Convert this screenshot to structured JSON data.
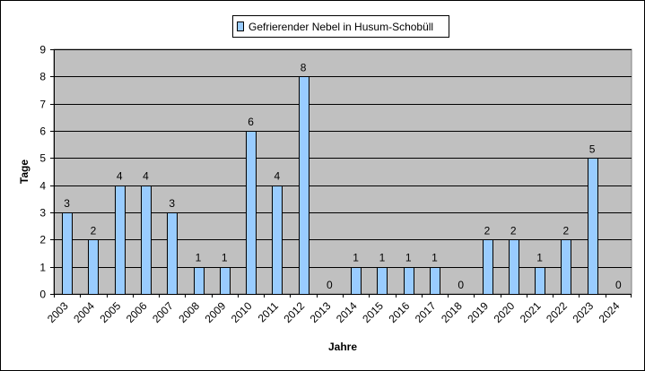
{
  "chart_data": {
    "type": "bar",
    "categories": [
      "2003",
      "2004",
      "2005",
      "2006",
      "2007",
      "2008",
      "2009",
      "2010",
      "2011",
      "2012",
      "2013",
      "2014",
      "2015",
      "2016",
      "2017",
      "2018",
      "2019",
      "2020",
      "2021",
      "2022",
      "2023",
      "2024"
    ],
    "series": [
      {
        "name": "Gefrierender Nebel in Husum-Schobüll",
        "values": [
          3,
          2,
          4,
          4,
          3,
          1,
          1,
          6,
          4,
          8,
          0,
          1,
          1,
          1,
          1,
          0,
          2,
          2,
          1,
          2,
          5,
          0
        ]
      }
    ],
    "xlabel": "Jahre",
    "ylabel": "Tage",
    "ylim": [
      0,
      9
    ],
    "yticks": [
      0,
      1,
      2,
      3,
      4,
      5,
      6,
      7,
      8,
      9
    ],
    "grid": true,
    "legend": "top-center",
    "data_labels": true
  },
  "colors": {
    "plot_background": "#c0c0c0",
    "bar_fill": "#99ccff",
    "bar_stroke": "#000000",
    "gridline": "#000000"
  }
}
